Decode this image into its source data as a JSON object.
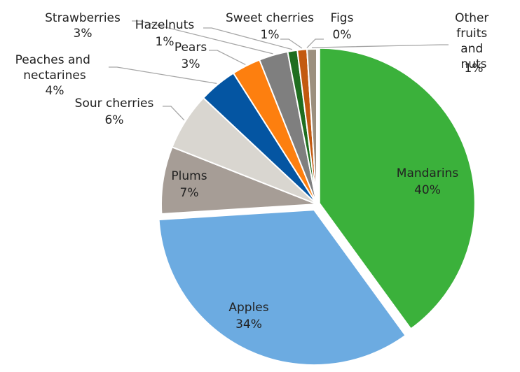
{
  "chart_data": {
    "type": "pie",
    "categories": [
      "Mandarins",
      "Apples",
      "Plums",
      "Sour cherries",
      "Peaches and nectarines",
      "Pears",
      "Strawberries",
      "Hazelnuts",
      "Sweet cherries",
      "Figs",
      "Other fruits and nuts"
    ],
    "values": [
      40,
      34,
      7,
      6,
      4,
      3,
      3,
      1,
      1,
      0,
      1
    ],
    "value_labels": [
      "40%",
      "34%",
      "7%",
      "6%",
      "4%",
      "3%",
      "3%",
      "1%",
      "1%",
      "0%",
      "1%"
    ],
    "colors": [
      "#3bb13b",
      "#6cabe1",
      "#a69d96",
      "#d9d6d0",
      "#0455a2",
      "#fd7f0f",
      "#7f7f7f",
      "#1f6e20",
      "#c35a10",
      "#8a4a12",
      "#9c907e"
    ]
  }
}
